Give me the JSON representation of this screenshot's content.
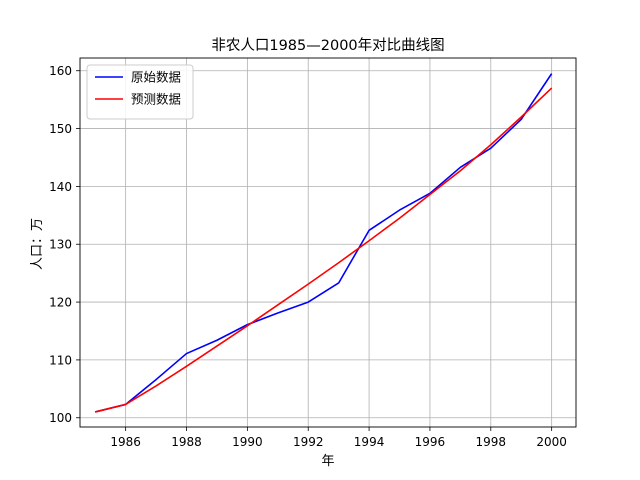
{
  "chart_data": {
    "type": "line",
    "title": "非农人口1985—2000年对比曲线图",
    "xlabel": "年",
    "ylabel": "人口：万",
    "x": [
      1985,
      1986,
      1987,
      1988,
      1989,
      1990,
      1991,
      1992,
      1993,
      1994,
      1995,
      1996,
      1997,
      1998,
      1999,
      2000
    ],
    "xlim": [
      1984.5,
      2000.8
    ],
    "ylim": [
      98.4,
      162.2
    ],
    "x_ticks": [
      1986,
      1988,
      1990,
      1992,
      1994,
      1996,
      1998,
      2000
    ],
    "y_ticks": [
      100,
      110,
      120,
      130,
      140,
      150,
      160
    ],
    "grid": true,
    "legend_position": "upper-left",
    "series": [
      {
        "name": "原始数据",
        "color": "#0000ff",
        "values": [
          101.0,
          102.3,
          106.6,
          111.1,
          113.4,
          116.1,
          118.1,
          120.0,
          123.3,
          132.4,
          135.9,
          138.8,
          143.3,
          146.6,
          151.6,
          159.5
        ]
      },
      {
        "name": "预测数据",
        "color": "#ff0000",
        "values": [
          101.0,
          102.3,
          105.5,
          108.9,
          112.4,
          115.9,
          119.5,
          123.1,
          126.8,
          130.6,
          134.5,
          138.6,
          142.7,
          147.2,
          152.0,
          157.0
        ]
      }
    ]
  }
}
